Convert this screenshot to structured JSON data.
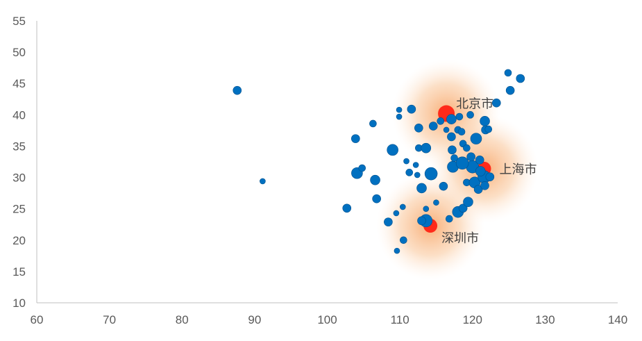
{
  "chart_data": {
    "type": "scatter",
    "subtype": "bubble",
    "title": "",
    "xlabel": "",
    "ylabel": "",
    "xlim": [
      60,
      140
    ],
    "ylim": [
      10,
      55
    ],
    "xticks": [
      60,
      70,
      80,
      90,
      100,
      110,
      120,
      130,
      140
    ],
    "yticks": [
      10,
      15,
      20,
      25,
      30,
      35,
      40,
      45,
      50,
      55
    ],
    "grid": false,
    "colors": {
      "points": "#0070C0",
      "highlight": "#FF2A1A",
      "glow": "#F8A060"
    },
    "series": [
      {
        "name": "cities",
        "points": [
          [
            87.6,
            43.9,
            6
          ],
          [
            91.1,
            29.4,
            4
          ],
          [
            102.7,
            25.1,
            6
          ],
          [
            103.9,
            36.2,
            6
          ],
          [
            104.1,
            30.7,
            8
          ],
          [
            104.8,
            31.5,
            5
          ],
          [
            106.3,
            38.6,
            5
          ],
          [
            106.6,
            29.6,
            7
          ],
          [
            106.8,
            26.6,
            6
          ],
          [
            108.4,
            22.9,
            6
          ],
          [
            109.0,
            34.4,
            8
          ],
          [
            109.5,
            24.3,
            4
          ],
          [
            109.6,
            18.3,
            4
          ],
          [
            109.9,
            40.8,
            4
          ],
          [
            109.9,
            39.7,
            4
          ],
          [
            110.4,
            25.3,
            4
          ],
          [
            110.5,
            20.0,
            5
          ],
          [
            110.9,
            32.6,
            4
          ],
          [
            111.3,
            30.8,
            5
          ],
          [
            111.6,
            40.9,
            6
          ],
          [
            112.2,
            32.0,
            4
          ],
          [
            112.4,
            30.4,
            4
          ],
          [
            112.6,
            37.9,
            6
          ],
          [
            112.6,
            34.7,
            5
          ],
          [
            113.6,
            34.7,
            7
          ],
          [
            113.0,
            28.3,
            7
          ],
          [
            113.6,
            25.0,
            4
          ],
          [
            114.3,
            30.6,
            9
          ],
          [
            113.6,
            23.1,
            9
          ],
          [
            113.0,
            23.1,
            6
          ],
          [
            115.0,
            26.0,
            4
          ],
          [
            114.6,
            38.2,
            6
          ],
          [
            115.6,
            39.0,
            5
          ],
          [
            116.0,
            28.6,
            6
          ],
          [
            116.4,
            37.6,
            4
          ],
          [
            116.8,
            23.4,
            5
          ],
          [
            117.1,
            39.3,
            7
          ],
          [
            117.1,
            36.5,
            6
          ],
          [
            117.2,
            34.4,
            6
          ],
          [
            117.3,
            31.7,
            8
          ],
          [
            117.5,
            33.1,
            5
          ],
          [
            118.2,
            39.7,
            5
          ],
          [
            118.0,
            37.6,
            5
          ],
          [
            118.5,
            37.3,
            5
          ],
          [
            118.7,
            35.4,
            5
          ],
          [
            119.2,
            34.7,
            5
          ],
          [
            118.0,
            24.5,
            8
          ],
          [
            118.7,
            25.1,
            6
          ],
          [
            119.4,
            26.1,
            7
          ],
          [
            119.2,
            29.2,
            5
          ],
          [
            119.7,
            40.0,
            5
          ],
          [
            120.5,
            36.2,
            8
          ],
          [
            120.0,
            31.7,
            9
          ],
          [
            121.0,
            32.8,
            6
          ],
          [
            120.3,
            29.2,
            8
          ],
          [
            120.8,
            28.1,
            6
          ],
          [
            121.6,
            30.1,
            9
          ],
          [
            121.7,
            39.0,
            7
          ],
          [
            121.8,
            37.6,
            6
          ],
          [
            122.2,
            37.7,
            5
          ],
          [
            122.4,
            30.1,
            6
          ],
          [
            121.7,
            28.7,
            6
          ],
          [
            123.3,
            41.9,
            6
          ],
          [
            124.9,
            46.7,
            5
          ],
          [
            125.2,
            43.9,
            6
          ],
          [
            126.6,
            45.8,
            6
          ],
          [
            118.6,
            32.3,
            9
          ],
          [
            119.8,
            33.3,
            6
          ],
          [
            121.1,
            31.0,
            7
          ]
        ]
      },
      {
        "name": "highlighted",
        "points": [
          {
            "label": "北京市",
            "x": 116.4,
            "y": 40.2,
            "s": 11
          },
          {
            "label": "上海市",
            "x": 121.6,
            "y": 31.4,
            "s": 9
          },
          {
            "label": "深圳市",
            "x": 114.2,
            "y": 22.3,
            "s": 9
          }
        ]
      }
    ]
  }
}
